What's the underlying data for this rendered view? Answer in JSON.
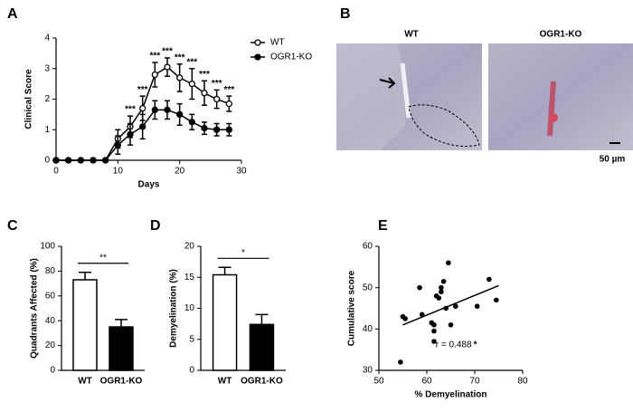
{
  "chart_data": [
    {
      "type": "line",
      "panel": "A",
      "xlabel": "Days",
      "ylabel": "Clinical Score",
      "x": [
        0,
        2,
        4,
        6,
        8,
        10,
        12,
        14,
        16,
        18,
        20,
        22,
        24,
        26,
        28
      ],
      "series": [
        {
          "name": "WT",
          "color": "#000000",
          "marker": "open",
          "values": [
            0,
            0,
            0,
            0,
            0,
            0.7,
            1.1,
            1.7,
            2.8,
            3.05,
            2.7,
            2.5,
            2.2,
            2.0,
            1.85
          ],
          "errors": [
            0,
            0,
            0,
            0,
            0,
            0.3,
            0.35,
            0.4,
            0.4,
            0.3,
            0.45,
            0.5,
            0.4,
            0.3,
            0.25
          ]
        },
        {
          "name": "OGR1-KO",
          "color": "#000000",
          "marker": "filled",
          "values": [
            0,
            0,
            0,
            0,
            0,
            0.5,
            0.85,
            1.1,
            1.65,
            1.65,
            1.5,
            1.25,
            1.05,
            1.0,
            1.0
          ],
          "errors": [
            0,
            0,
            0,
            0,
            0,
            0.3,
            0.35,
            0.4,
            0.3,
            0.3,
            0.35,
            0.25,
            0.2,
            0.2,
            0.2
          ]
        }
      ],
      "significance": [
        null,
        null,
        null,
        null,
        null,
        null,
        "***",
        "***",
        "***",
        "***",
        "***",
        "***",
        "***",
        "***",
        "***"
      ],
      "xlim": [
        0,
        30
      ],
      "xticks": [
        0,
        10,
        20,
        30
      ],
      "ylim": [
        0,
        4
      ],
      "yticks": [
        0,
        1,
        2,
        3,
        4
      ],
      "legend": "top-right"
    },
    {
      "type": "image",
      "panel": "B",
      "titles": [
        "WT",
        "OGR1-KO"
      ],
      "scale_bar": "50 µm"
    },
    {
      "type": "bar",
      "panel": "C",
      "ylabel": "Quadrants Affected (%)",
      "categories": [
        "WT",
        "OGR1-KO"
      ],
      "values": [
        73,
        35
      ],
      "errors": [
        6,
        6
      ],
      "colors": [
        "#ffffff",
        "#000000"
      ],
      "significance": "**",
      "ylim": [
        0,
        100
      ],
      "yticks": [
        0,
        20,
        40,
        60,
        80,
        100
      ]
    },
    {
      "type": "bar",
      "panel": "D",
      "ylabel": "Demyelination (%)",
      "categories": [
        "WT",
        "OGR1-KO"
      ],
      "values": [
        15.4,
        7.4
      ],
      "errors": [
        1.2,
        1.6
      ],
      "colors": [
        "#ffffff",
        "#000000"
      ],
      "significance": "*",
      "ylim": [
        0,
        20
      ],
      "yticks": [
        0,
        5,
        10,
        15,
        20
      ]
    },
    {
      "type": "scatter",
      "panel": "E",
      "xlabel": "% Demyelination",
      "ylabel": "Cumulative score",
      "color": "#000000",
      "x": [
        54.5,
        55,
        55.5,
        58.5,
        59,
        61,
        61.5,
        61.5,
        61.5,
        62,
        62.5,
        63,
        63,
        63.5,
        64,
        64.5,
        65,
        66,
        70.5,
        73,
        74.5
      ],
      "y": [
        32,
        43,
        42.5,
        50,
        43.5,
        41.5,
        37,
        39.5,
        41,
        48,
        47.5,
        50,
        49,
        51.5,
        45,
        56,
        41,
        45.5,
        45.5,
        52,
        47
      ],
      "trend": {
        "x": [
          55,
          75
        ],
        "y": [
          41,
          50.5
        ]
      },
      "annotation": "r = 0.488",
      "annotation_mark": "*",
      "xlim": [
        50,
        80
      ],
      "xticks": [
        50,
        60,
        70,
        80
      ],
      "ylim": [
        30,
        60
      ],
      "yticks": [
        30,
        40,
        50,
        60
      ]
    }
  ]
}
